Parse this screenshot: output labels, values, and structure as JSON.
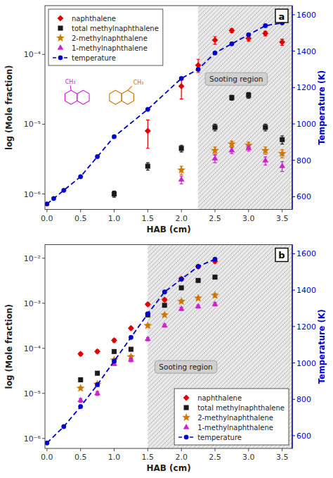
{
  "chart_data": [
    {
      "type": "scatter",
      "title": "a",
      "x_label": "HAB (cm)",
      "y_label": "log (Mole fraction)",
      "y2_label": "Temperature (K)",
      "log": "y",
      "legend": "upper left",
      "grid": false,
      "xlim": [
        -0.03,
        3.65
      ],
      "xticks": [
        {
          "value": 0,
          "label": "0.0"
        },
        0.5,
        {
          "value": 1,
          "label": "1.0"
        },
        1.5,
        {
          "value": 2,
          "label": "2.0"
        },
        2.5,
        {
          "value": 3,
          "label": "3.0"
        },
        3.5
      ],
      "ylim": [
        6e-07,
        0.0005
      ],
      "yticks": [
        {
          "value": 1e-06,
          "label": "10⁻⁶"
        },
        {
          "value": 1e-05,
          "label": "10⁻⁵"
        },
        {
          "value": 0.0001,
          "label": "10⁻⁴"
        }
      ],
      "y2lim": [
        530,
        1650
      ],
      "y2ticks": [
        600,
        800,
        1000,
        1200,
        1400,
        1600
      ],
      "shaded_region": {
        "x": [
          2.25,
          3.65
        ],
        "label": "Sooting region"
      },
      "annotations": [
        "CH₃",
        "CH₃"
      ],
      "series": [
        {
          "name": "naphthalene",
          "color": "#dd0000",
          "marker": "diamond",
          "x": [
            1.5,
            2.0,
            2.25,
            2.5,
            2.75,
            3.0,
            3.25,
            3.5
          ],
          "values": [
            8e-06,
            3.5e-05,
            7e-05,
            0.00016,
            0.00022,
            0.00017,
            0.0002,
            0.00015
          ],
          "errors": [
            3.5e-06,
            1.2e-05,
            1.5e-05,
            2e-05,
            1.5e-05,
            1.5e-05,
            1.5e-05,
            1.5e-05
          ]
        },
        {
          "name": "total methylnaphthalene",
          "color": "#1a1a1a",
          "marker": "square",
          "x": [
            1.0,
            1.5,
            2.0,
            2.5,
            2.75,
            3.0,
            3.25,
            3.5
          ],
          "values": [
            1e-06,
            2.5e-06,
            4.5e-06,
            9e-06,
            2.4e-05,
            2.6e-05,
            9e-06,
            6e-06
          ],
          "errors": [
            1e-07,
            3e-07,
            5e-07,
            1e-06,
            2e-06,
            2.5e-06,
            1e-06,
            8e-07
          ]
        },
        {
          "name": "2-methylnaphthalene",
          "color": "#cc7700",
          "marker": "star",
          "x": [
            2.0,
            2.5,
            2.75,
            3.0,
            3.25,
            3.5
          ],
          "values": [
            2.2e-06,
            4.2e-06,
            5.2e-06,
            5e-06,
            4.2e-06,
            3.8e-06
          ],
          "errors": [
            3e-07,
            5e-07,
            5e-07,
            5e-07,
            5e-07,
            5e-07
          ]
        },
        {
          "name": "1-methylnaphthalene",
          "color": "#cc22cc",
          "marker": "triangle",
          "x": [
            2.0,
            2.5,
            2.75,
            3.0,
            3.25,
            3.5
          ],
          "values": [
            1.6e-06,
            3.2e-06,
            4.2e-06,
            4.5e-06,
            3e-06,
            2.5e-06
          ],
          "errors": [
            2e-07,
            4e-07,
            4e-07,
            4e-07,
            4e-07,
            4e-07
          ]
        },
        {
          "name": "temperature",
          "color": "#0000cc",
          "type": "line",
          "marker": "circle",
          "line_style": "dashed",
          "axis": "y2",
          "x": [
            0.0,
            0.1,
            0.25,
            0.5,
            0.75,
            1.0,
            1.5,
            2.0,
            2.25,
            2.5,
            2.75,
            3.0,
            3.25,
            3.5
          ],
          "values": [
            560,
            590,
            635,
            710,
            820,
            930,
            1080,
            1250,
            1300,
            1390,
            1440,
            1490,
            1540,
            1555
          ]
        }
      ]
    },
    {
      "type": "scatter",
      "title": "b",
      "x_label": "HAB (cm)",
      "y_label": "log (Mole fraction)",
      "y2_label": "Temperature (K)",
      "log": "y",
      "legend": "lower right",
      "grid": false,
      "xlim": [
        -0.03,
        3.65
      ],
      "xticks": [
        {
          "value": 0,
          "label": "0.0"
        },
        0.5,
        {
          "value": 1,
          "label": "1.0"
        },
        1.5,
        {
          "value": 2,
          "label": "2.0"
        },
        2.5,
        {
          "value": 3,
          "label": "3.0"
        },
        3.5
      ],
      "ylim": [
        6e-07,
        0.02
      ],
      "yticks": [
        {
          "value": 1e-06,
          "label": "10⁻⁶"
        },
        {
          "value": 1e-05,
          "label": "10⁻⁵"
        },
        {
          "value": 0.0001,
          "label": "10⁻⁴"
        },
        {
          "value": 0.001,
          "label": "10⁻³"
        },
        {
          "value": 0.01,
          "label": "10⁻²"
        }
      ],
      "y2lim": [
        530,
        1650
      ],
      "y2ticks": [
        600,
        800,
        1000,
        1200,
        1400,
        1600
      ],
      "shaded_region": {
        "x": [
          1.5,
          3.65
        ],
        "label": "Sooting region"
      },
      "series": [
        {
          "name": "naphthalene",
          "color": "#dd0000",
          "marker": "diamond",
          "x": [
            0.5,
            0.75,
            1.0,
            1.25,
            1.5,
            1.75,
            2.0,
            2.25,
            2.5
          ],
          "values": [
            7.5e-05,
            8.5e-05,
            0.00015,
            0.00028,
            0.00095,
            0.0012,
            0.0035,
            0.0065,
            0.0085
          ],
          "errors": [
            6e-06,
            7e-06,
            1.2e-05,
            2e-05,
            7e-05,
            0.0001,
            0.0003,
            0.0005,
            0.0007
          ]
        },
        {
          "name": "total methylnaphthalene",
          "color": "#1a1a1a",
          "marker": "square",
          "x": [
            0.5,
            0.75,
            1.0,
            1.25,
            1.5,
            1.75,
            2.0,
            2.25,
            2.5
          ],
          "values": [
            2e-05,
            2.8e-05,
            8.5e-05,
            9.5e-05,
            0.00055,
            0.0009,
            0.0022,
            0.0032,
            0.0038
          ],
          "errors": [
            2e-06,
            2.5e-06,
            7e-06,
            8e-06,
            4.5e-05,
            7e-05,
            0.00018,
            0.00025,
            0.0003
          ]
        },
        {
          "name": "2-methylnaphthalene",
          "color": "#cc7700",
          "marker": "star",
          "x": [
            0.5,
            0.75,
            1.0,
            1.25,
            1.5,
            1.75,
            2.0,
            2.25,
            2.5
          ],
          "values": [
            1.3e-05,
            1.6e-05,
            5.5e-05,
            6.5e-05,
            0.00032,
            0.00055,
            0.0011,
            0.0013,
            0.0015
          ],
          "errors": [
            1e-06,
            1.5e-06,
            4.5e-06,
            5.5e-06,
            2.5e-05,
            4.5e-05,
            9e-05,
            0.00011,
            0.00013
          ]
        },
        {
          "name": "1-methylnaphthalene",
          "color": "#cc22cc",
          "marker": "triangle",
          "x": [
            0.5,
            0.75,
            1.0,
            1.25,
            1.5,
            1.75,
            2.0,
            2.25,
            2.5
          ],
          "values": [
            7e-06,
            1e-05,
            4.5e-05,
            5.5e-05,
            0.00016,
            0.00032,
            0.00075,
            0.00085,
            0.00095
          ],
          "errors": [
            7e-07,
            1e-06,
            3.5e-06,
            4.5e-06,
            1.3e-05,
            2.5e-05,
            6e-05,
            7e-05,
            8e-05
          ]
        },
        {
          "name": "temperature",
          "color": "#0000cc",
          "type": "line",
          "marker": "circle",
          "line_style": "dashed",
          "axis": "y2",
          "x": [
            0.0,
            0.25,
            0.5,
            0.75,
            1.0,
            1.25,
            1.5,
            1.75,
            2.0,
            2.25,
            2.5
          ],
          "values": [
            560,
            650,
            760,
            880,
            1010,
            1140,
            1270,
            1390,
            1460,
            1530,
            1570
          ]
        }
      ]
    }
  ]
}
